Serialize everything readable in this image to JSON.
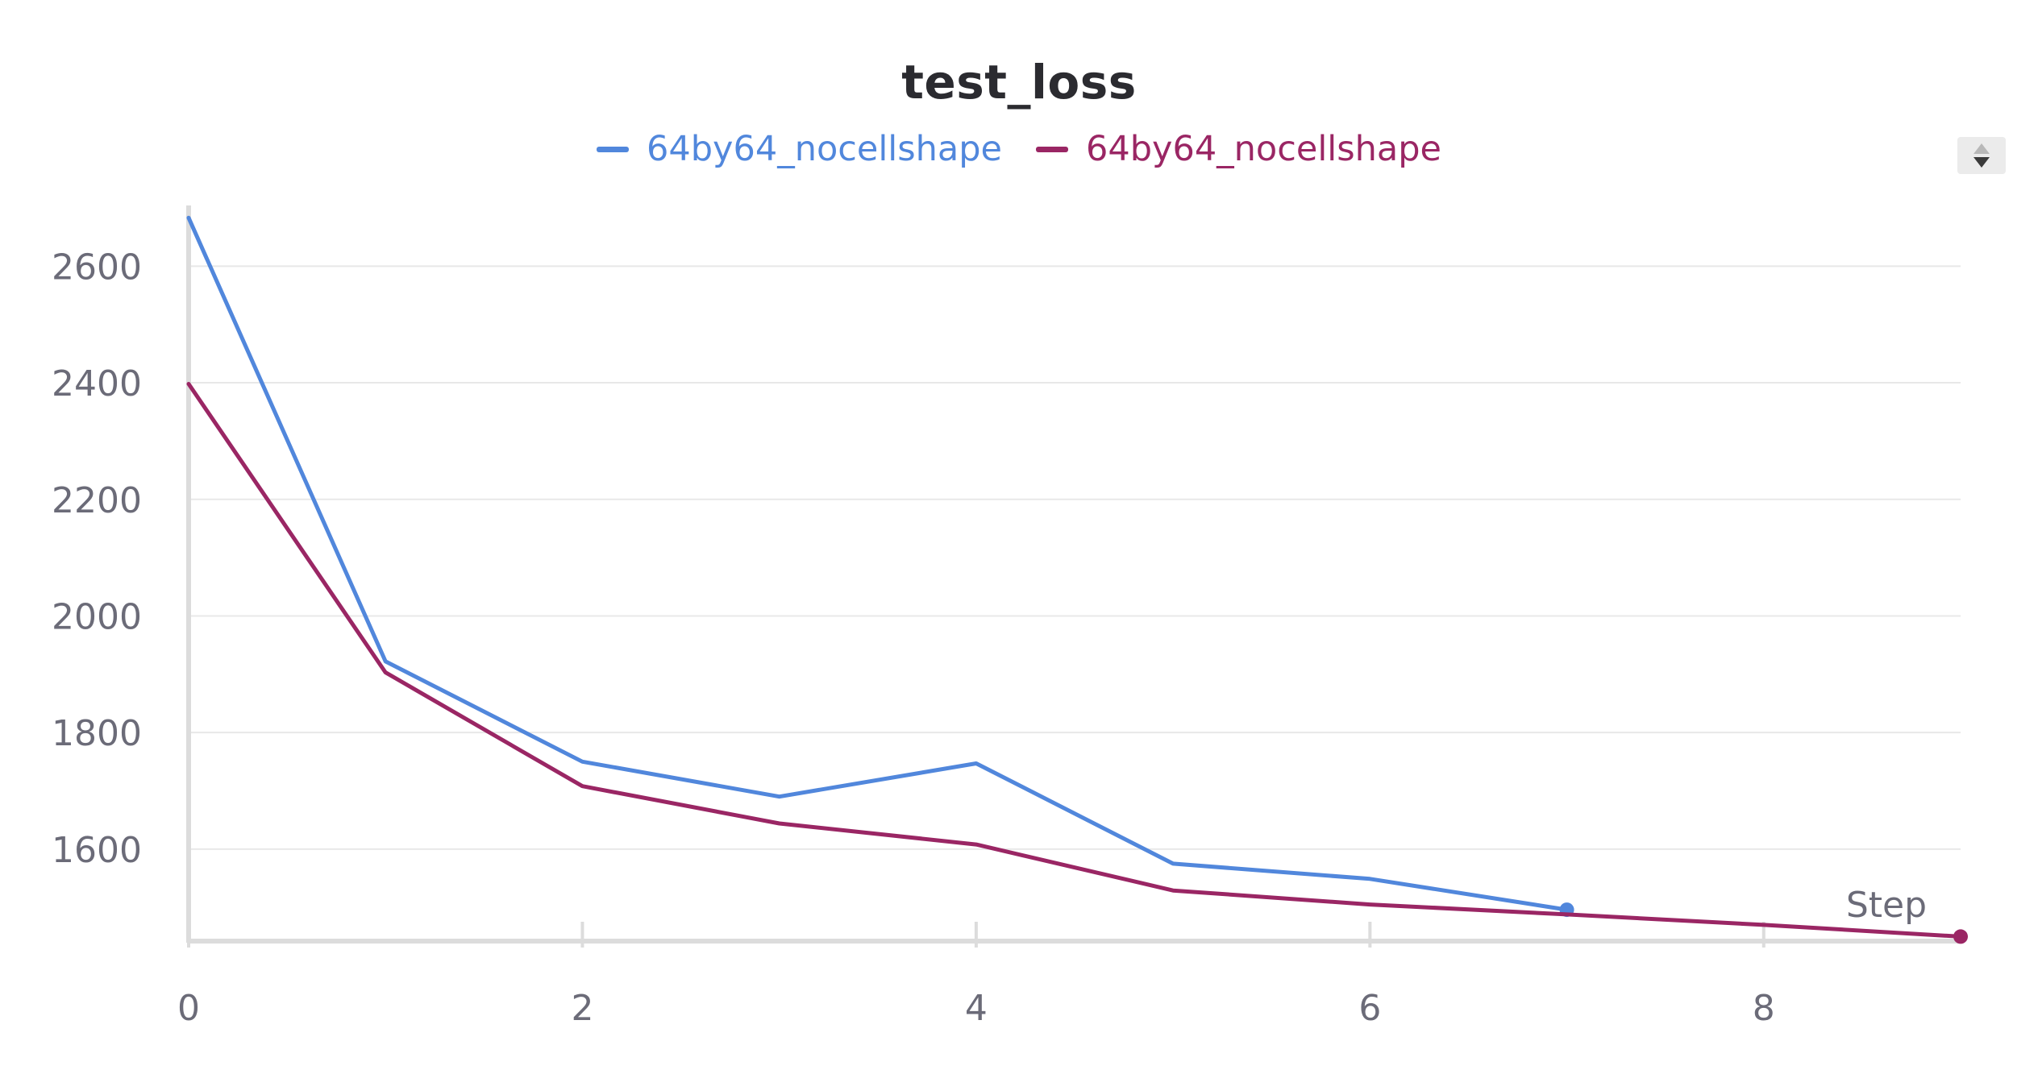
{
  "panel": {
    "title": "test_loss"
  },
  "colors": {
    "series_blue": "#5187dc",
    "series_magenta": "#9a2664",
    "grid": "#e8e8e8",
    "axis": "#dcdcdc",
    "tick_text": "#6b6b78"
  },
  "legend": {
    "scroll_up_icon": "chevron-up-icon",
    "scroll_down_icon": "chevron-down-icon"
  },
  "chart_data": {
    "type": "line",
    "title": "test_loss",
    "xlabel": "Step",
    "ylabel": "",
    "xlim": [
      0,
      9
    ],
    "ylim": [
      1445,
      2700
    ],
    "x_ticks": [
      0,
      2,
      4,
      6,
      8
    ],
    "y_ticks": [
      1600,
      1800,
      2000,
      2200,
      2400,
      2600
    ],
    "grid": true,
    "legend_position": "top-center",
    "series": [
      {
        "name": "64by64_nocellshape",
        "color": "#5187dc",
        "x": [
          0,
          1,
          2,
          3,
          4,
          5,
          6,
          7
        ],
        "y": [
          2683,
          1922,
          1750,
          1690,
          1747,
          1575,
          1549,
          1496
        ]
      },
      {
        "name": "64by64_nocellshape",
        "color": "#9a2664",
        "x": [
          0,
          1,
          2,
          3,
          4,
          5,
          6,
          7,
          8,
          9
        ],
        "y": [
          2398,
          1903,
          1708,
          1644,
          1608,
          1529,
          1505,
          1488,
          1470,
          1450
        ]
      }
    ]
  }
}
